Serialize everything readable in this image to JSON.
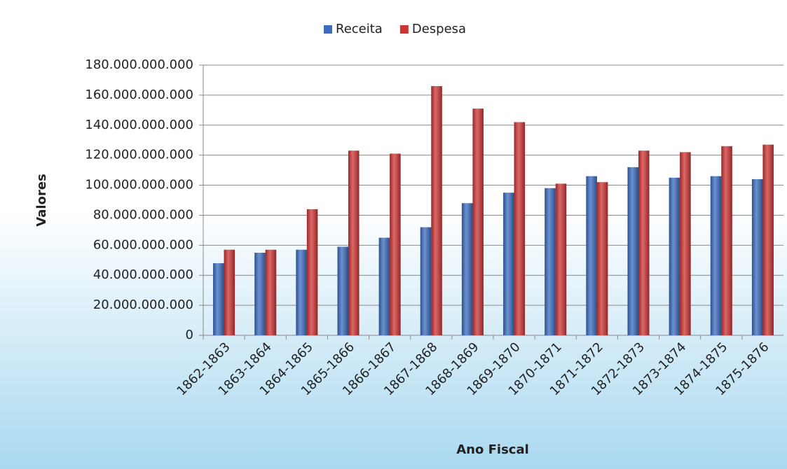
{
  "chart_data": {
    "type": "bar",
    "x_label": "Ano Fiscal",
    "y_label": "Valores",
    "categories": [
      "1862-1863",
      "1863-1864",
      "1864-1865",
      "1865-1866",
      "1866-1867",
      "1867-1868",
      "1868-1869",
      "1869-1870",
      "1870-1871",
      "1871-1872",
      "1872-1873",
      "1873-1874",
      "1874-1875",
      "1875-1876"
    ],
    "series": [
      {
        "name": "Receita",
        "color": "#3b6cc0",
        "values": [
          48000000000,
          55000000000,
          57000000000,
          59000000000,
          65000000000,
          72000000000,
          88000000000,
          95000000000,
          98000000000,
          106000000000,
          112000000000,
          105000000000,
          106000000000,
          104000000000
        ]
      },
      {
        "name": "Despesa",
        "color": "#cf3434",
        "values": [
          57000000000,
          57000000000,
          84000000000,
          123000000000,
          121000000000,
          166000000000,
          151000000000,
          142000000000,
          101000000000,
          102000000000,
          123000000000,
          122000000000,
          126000000000,
          127000000000
        ]
      }
    ],
    "ylim": [
      0,
      180000000000
    ],
    "yticks": [
      0,
      {
        "value": 20000000000,
        "label": "20.000.000.000"
      },
      {
        "value": 40000000000,
        "label": "40.000.000.000"
      },
      {
        "value": 60000000000,
        "label": "60.000.000.000"
      },
      {
        "value": 80000000000,
        "label": "80.000.000.000"
      },
      {
        "value": 100000000000,
        "label": "100.000.000.000"
      },
      {
        "value": 120000000000,
        "label": "120.000.000.000"
      },
      {
        "value": 140000000000,
        "label": "140.000.000.000"
      },
      {
        "value": 160000000000,
        "label": "160.000.000.000"
      },
      {
        "value": 180000000000,
        "label": "180.000.000.000"
      }
    ],
    "grid": true,
    "legend": "top"
  }
}
